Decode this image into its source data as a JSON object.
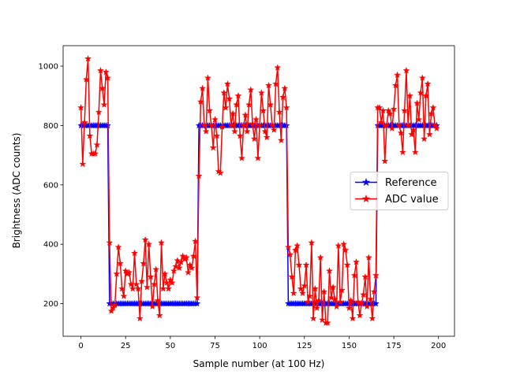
{
  "chart_data": {
    "type": "line",
    "xlabel": "Sample number (at 100 Hz)",
    "ylabel": "Brightness (ADC counts)",
    "x": [
      0,
      1,
      2,
      3,
      4,
      5,
      6,
      7,
      8,
      9,
      10,
      11,
      12,
      13,
      14,
      15,
      16,
      17,
      18,
      19,
      20,
      21,
      22,
      23,
      24,
      25,
      26,
      27,
      28,
      29,
      30,
      31,
      32,
      33,
      34,
      35,
      36,
      37,
      38,
      39,
      40,
      41,
      42,
      43,
      44,
      45,
      46,
      47,
      48,
      49,
      50,
      51,
      52,
      53,
      54,
      55,
      56,
      57,
      58,
      59,
      60,
      61,
      62,
      63,
      64,
      65,
      66,
      67,
      68,
      69,
      70,
      71,
      72,
      73,
      74,
      75,
      76,
      77,
      78,
      79,
      80,
      81,
      82,
      83,
      84,
      85,
      86,
      87,
      88,
      89,
      90,
      91,
      92,
      93,
      94,
      95,
      96,
      97,
      98,
      99,
      100,
      101,
      102,
      103,
      104,
      105,
      106,
      107,
      108,
      109,
      110,
      111,
      112,
      113,
      114,
      115,
      116,
      117,
      118,
      119,
      120,
      121,
      122,
      123,
      124,
      125,
      126,
      127,
      128,
      129,
      130,
      131,
      132,
      133,
      134,
      135,
      136,
      137,
      138,
      139,
      140,
      141,
      142,
      143,
      144,
      145,
      146,
      147,
      148,
      149,
      150,
      151,
      152,
      153,
      154,
      155,
      156,
      157,
      158,
      159,
      160,
      161,
      162,
      163,
      164,
      165,
      166,
      167,
      168,
      169,
      170,
      171,
      172,
      173,
      174,
      175,
      176,
      177,
      178,
      179,
      180,
      181,
      182,
      183,
      184,
      185,
      186,
      187,
      188,
      189,
      190,
      191,
      192,
      193,
      194,
      195,
      196,
      197,
      198,
      199
    ],
    "series": [
      {
        "name": "Reference",
        "color": "#0000ff",
        "values": [
          800,
          800,
          800,
          800,
          800,
          800,
          800,
          800,
          800,
          800,
          800,
          800,
          800,
          800,
          800,
          800,
          200,
          200,
          200,
          200,
          200,
          200,
          200,
          200,
          200,
          200,
          200,
          200,
          200,
          200,
          200,
          200,
          200,
          200,
          200,
          200,
          200,
          200,
          200,
          200,
          200,
          200,
          200,
          200,
          200,
          200,
          200,
          200,
          200,
          200,
          200,
          200,
          200,
          200,
          200,
          200,
          200,
          200,
          200,
          200,
          200,
          200,
          200,
          200,
          200,
          200,
          800,
          800,
          800,
          800,
          800,
          800,
          800,
          800,
          800,
          800,
          800,
          800,
          800,
          800,
          800,
          800,
          800,
          800,
          800,
          800,
          800,
          800,
          800,
          800,
          800,
          800,
          800,
          800,
          800,
          800,
          800,
          800,
          800,
          800,
          800,
          800,
          800,
          800,
          800,
          800,
          800,
          800,
          800,
          800,
          800,
          800,
          800,
          800,
          800,
          800,
          200,
          200,
          200,
          200,
          200,
          200,
          200,
          200,
          200,
          200,
          200,
          200,
          200,
          200,
          200,
          200,
          200,
          200,
          200,
          200,
          200,
          200,
          200,
          200,
          200,
          200,
          200,
          200,
          200,
          200,
          200,
          200,
          200,
          200,
          200,
          200,
          200,
          200,
          200,
          200,
          200,
          200,
          200,
          200,
          200,
          200,
          200,
          200,
          200,
          200,
          800,
          800,
          800,
          800,
          800,
          800,
          800,
          800,
          800,
          800,
          800,
          800,
          800,
          800,
          800,
          800,
          800,
          800,
          800,
          800,
          800,
          800,
          800,
          800,
          800,
          800,
          800,
          800,
          800,
          800,
          800,
          800,
          800,
          800
        ]
      },
      {
        "name": "ADC value",
        "color": "#ff0000",
        "values": [
          860,
          670,
          810,
          955,
          1025,
          765,
          705,
          705,
          705,
          735,
          845,
          985,
          925,
          870,
          980,
          960,
          405,
          175,
          185,
          195,
          300,
          390,
          335,
          250,
          225,
          310,
          300,
          305,
          265,
          250,
          370,
          265,
          250,
          150,
          275,
          335,
          415,
          255,
          400,
          290,
          190,
          265,
          315,
          210,
          160,
          405,
          250,
          300,
          270,
          250,
          280,
          270,
          310,
          325,
          345,
          320,
          340,
          360,
          350,
          355,
          305,
          330,
          320,
          360,
          410,
          220,
          630,
          880,
          925,
          800,
          780,
          960,
          850,
          800,
          725,
          820,
          765,
          645,
          640,
          795,
          910,
          860,
          940,
          890,
          800,
          840,
          780,
          870,
          900,
          765,
          690,
          800,
          835,
          780,
          870,
          920,
          805,
          755,
          820,
          690,
          800,
          910,
          850,
          780,
          760,
          935,
          870,
          800,
          785,
          940,
          995,
          845,
          750,
          895,
          925,
          860,
          390,
          365,
          290,
          235,
          380,
          395,
          330,
          250,
          235,
          260,
          330,
          205,
          225,
          405,
          150,
          250,
          185,
          210,
          355,
          145,
          240,
          135,
          135,
          310,
          220,
          255,
          215,
          190,
          395,
          205,
          245,
          400,
          380,
          330,
          185,
          210,
          150,
          295,
          340,
          205,
          160,
          200,
          230,
          290,
          190,
          355,
          215,
          150,
          240,
          295,
          860,
          860,
          810,
          850,
          680,
          800,
          850,
          840,
          790,
          855,
          935,
          970,
          800,
          775,
          710,
          850,
          985,
          800,
          900,
          770,
          785,
          710,
          875,
          820,
          910,
          960,
          755,
          900,
          940,
          770,
          840,
          860,
          800,
          790
        ]
      }
    ],
    "xlim": [
      -9.95,
      208.95
    ],
    "xticks": [
      0,
      25,
      50,
      75,
      100,
      125,
      150,
      175,
      200
    ],
    "ylim": [
      90,
      1069
    ],
    "yticks": [
      200,
      400,
      600,
      800,
      1000
    ],
    "grid": false,
    "legend": "center right"
  }
}
